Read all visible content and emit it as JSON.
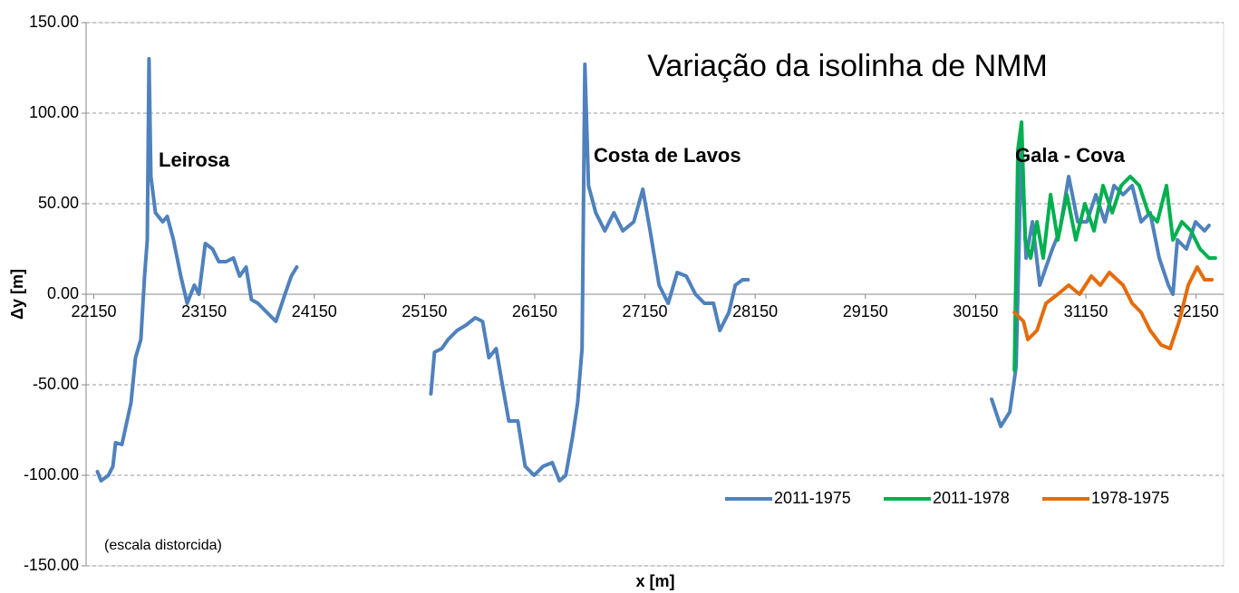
{
  "chart_data": {
    "type": "line",
    "title": "Variação da isolinha de NMM",
    "xlabel": "x [m]",
    "ylabel": "Δy [m]",
    "annotations": [
      "Leirosa",
      "Costa de Lavos",
      "Gala - Cova",
      "(escala distorcida)"
    ],
    "xlim": [
      22080,
      32400
    ],
    "xticks": [
      22150,
      23150,
      24150,
      25150,
      26150,
      27150,
      28150,
      29150,
      30150,
      31150,
      32150
    ],
    "ylim": [
      -150,
      150
    ],
    "yticks": [
      {
        "value": -150,
        "label": "-150.00"
      },
      {
        "value": -100,
        "label": "-100.00"
      },
      {
        "value": -50,
        "label": "-50.00"
      },
      {
        "value": 0,
        "label": "0.00"
      },
      {
        "value": 50,
        "label": "50.00"
      },
      {
        "value": 100,
        "label": "100.00"
      },
      {
        "value": 150,
        "label": "150.00"
      }
    ],
    "grid": true,
    "legend": "lower right",
    "series": [
      {
        "name": "2011-1975",
        "color": "#4f81bd",
        "x": [
          22183,
          22216,
          22282,
          22323,
          22347,
          22405,
          22487,
          22528,
          22577,
          22610,
          22635,
          22651,
          22668,
          22709,
          22775,
          22816,
          22873,
          22939,
          22997,
          23062,
          23104,
          23161,
          23227,
          23284,
          23350,
          23416,
          23473,
          23531,
          23580,
          23638,
          23720,
          23802,
          23884,
          23942,
          23991,
          null,
          25208,
          25241,
          25307,
          25364,
          25446,
          25528,
          25611,
          25677,
          25734,
          25800,
          25857,
          25915,
          25997,
          26063,
          26145,
          26227,
          26309,
          26375,
          26432,
          26490,
          26539,
          26580,
          26605,
          26638,
          26704,
          26786,
          26868,
          26950,
          27049,
          27131,
          27197,
          27279,
          27361,
          27443,
          27525,
          27608,
          27690,
          27772,
          27830,
          27912,
          27970,
          28036,
          28085,
          null,
          30296,
          30378,
          30460,
          30518,
          30567,
          30608,
          30666,
          30732,
          30789,
          30847,
          30913,
          30995,
          31077,
          31159,
          31241,
          31323,
          31406,
          31488,
          31570,
          31652,
          31734,
          31816,
          31899,
          31940,
          31981,
          32063,
          32145,
          32227,
          32268
        ],
        "values": [
          -98,
          -103,
          -100,
          -95,
          -82,
          -83,
          -60,
          -35,
          -25,
          10,
          30,
          130,
          65,
          45,
          40,
          43,
          30,
          10,
          -5,
          5,
          0,
          28,
          25,
          18,
          18,
          20,
          10,
          15,
          -3,
          -5,
          -10,
          -15,
          0,
          10,
          15,
          null,
          -55,
          -32,
          -30,
          -25,
          -20,
          -17,
          -13,
          -15,
          -35,
          -30,
          -50,
          -70,
          -70,
          -95,
          -100,
          -95,
          -93,
          -103,
          -100,
          -80,
          -60,
          -30,
          127,
          60,
          45,
          35,
          45,
          35,
          40,
          58,
          35,
          5,
          -5,
          12,
          10,
          0,
          -5,
          -5,
          -20,
          -10,
          5,
          8,
          8,
          null,
          -58,
          -73,
          -65,
          -40,
          85,
          20,
          40,
          5,
          15,
          25,
          35,
          65,
          40,
          40,
          55,
          40,
          60,
          55,
          60,
          40,
          45,
          20,
          5,
          0,
          30,
          25,
          40,
          35,
          38
        ]
      },
      {
        "name": "2011-1978",
        "color": "#00b050",
        "x": [
          30502,
          30534,
          30567,
          30600,
          30649,
          30707,
          30764,
          30830,
          30896,
          30978,
          31060,
          31142,
          31224,
          31306,
          31389,
          31471,
          31553,
          31635,
          31717,
          31799,
          31882,
          31940,
          32022,
          32104,
          32186,
          32268,
          32325
        ],
        "values": [
          -42,
          80,
          95,
          30,
          20,
          40,
          20,
          55,
          30,
          55,
          30,
          50,
          35,
          60,
          45,
          60,
          65,
          60,
          45,
          40,
          60,
          30,
          40,
          35,
          25,
          20,
          20
        ]
      },
      {
        "name": "1978-1975",
        "color": "#e46c0a",
        "x": [
          30502,
          30584,
          30625,
          30707,
          30789,
          30896,
          30995,
          31093,
          31200,
          31282,
          31364,
          31488,
          31570,
          31652,
          31734,
          31833,
          31915,
          31997,
          32079,
          32161,
          32227,
          32293
        ],
        "values": [
          -10,
          -15,
          -25,
          -20,
          -5,
          0,
          5,
          0,
          10,
          5,
          12,
          5,
          -5,
          -10,
          -20,
          -28,
          -30,
          -15,
          5,
          15,
          8,
          8
        ]
      }
    ]
  }
}
